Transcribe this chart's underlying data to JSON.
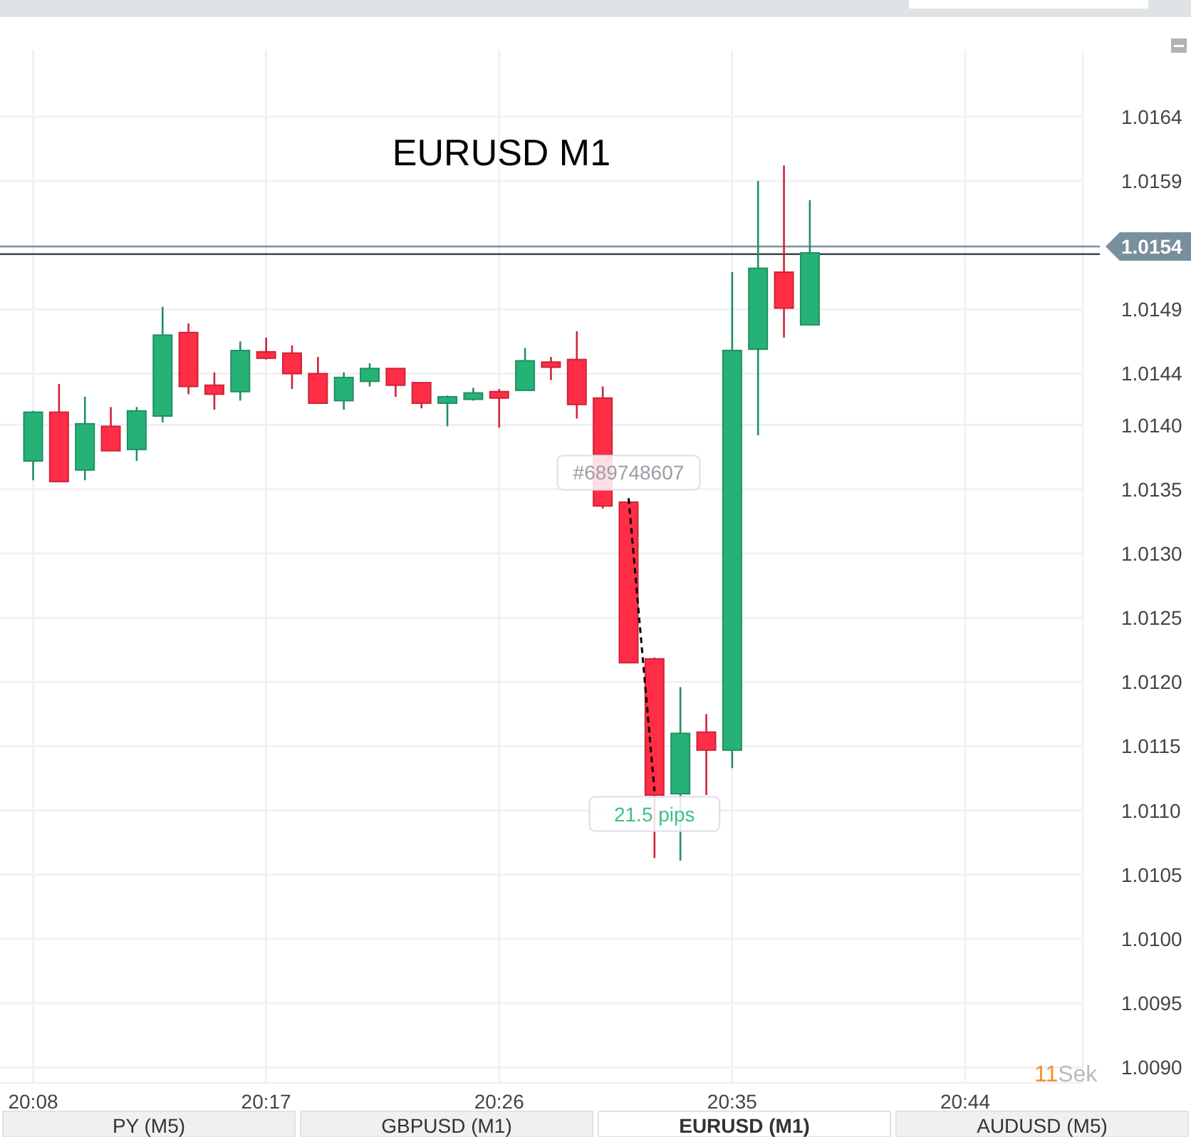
{
  "chart_data": {
    "type": "candlestick",
    "title": "EURUSD M1",
    "x": [
      20.13333,
      20.15,
      20.16667,
      20.18333,
      20.2,
      20.21667,
      20.23333,
      20.25,
      20.26667,
      20.28333,
      20.3,
      20.31667,
      20.33333,
      20.35,
      20.36667,
      20.38333,
      20.4,
      20.41667,
      20.43333,
      20.45,
      20.46667,
      20.48333,
      20.5,
      20.51667,
      20.53333,
      20.55,
      20.56667,
      20.58333,
      20.6,
      20.61667,
      20.63333
    ],
    "ohlc": [
      [
        1.01372,
        1.01411,
        1.01357,
        1.0141
      ],
      [
        1.0141,
        1.01432,
        1.01356,
        1.01356
      ],
      [
        1.01365,
        1.01422,
        1.01357,
        1.01401
      ],
      [
        1.01399,
        1.01414,
        1.0138,
        1.0138
      ],
      [
        1.01381,
        1.01414,
        1.01372,
        1.01411
      ],
      [
        1.01407,
        1.01492,
        1.01402,
        1.0147
      ],
      [
        1.01472,
        1.01479,
        1.01424,
        1.0143
      ],
      [
        1.01431,
        1.01441,
        1.01412,
        1.01424
      ],
      [
        1.01426,
        1.01465,
        1.01419,
        1.01458
      ],
      [
        1.01457,
        1.01468,
        1.01451,
        1.01452
      ],
      [
        1.01456,
        1.01462,
        1.01428,
        1.0144
      ],
      [
        1.0144,
        1.01453,
        1.01417,
        1.01417
      ],
      [
        1.01419,
        1.01441,
        1.01412,
        1.01437
      ],
      [
        1.01434,
        1.01448,
        1.0143,
        1.01444
      ],
      [
        1.01444,
        1.01444,
        1.01422,
        1.01431
      ],
      [
        1.01433,
        1.01433,
        1.01413,
        1.01417
      ],
      [
        1.01417,
        1.01423,
        1.01399,
        1.01422
      ],
      [
        1.0142,
        1.01429,
        1.01419,
        1.01425
      ],
      [
        1.01426,
        1.01428,
        1.01398,
        1.01421
      ],
      [
        1.01427,
        1.0146,
        1.01427,
        1.0145
      ],
      [
        1.01449,
        1.01453,
        1.01435,
        1.01445
      ],
      [
        1.01451,
        1.01473,
        1.01405,
        1.01416
      ],
      [
        1.01421,
        1.0143,
        1.01335,
        1.01337
      ],
      [
        1.0134,
        1.0134,
        1.01215,
        1.01215
      ],
      [
        1.01218,
        1.01219,
        1.01063,
        1.01112
      ],
      [
        1.01113,
        1.01196,
        1.01061,
        1.0116
      ],
      [
        1.01161,
        1.01175,
        1.01112,
        1.01147
      ],
      [
        1.01147,
        1.01519,
        1.01133,
        1.01458
      ],
      [
        1.01459,
        1.0159,
        1.01392,
        1.01522
      ],
      [
        1.01519,
        1.01602,
        1.01468,
        1.01491
      ],
      [
        1.01478,
        1.01575,
        1.01478,
        1.01534
      ]
    ],
    "colors": [
      "#26b276",
      "#ff2d46",
      "#26b276",
      "#ff2d46",
      "#26b276",
      "#26b276",
      "#ff2d46",
      "#ff2d46",
      "#26b276",
      "#ff2d46",
      "#ff2d46",
      "#ff2d46",
      "#26b276",
      "#26b276",
      "#ff2d46",
      "#ff2d46",
      "#26b276",
      "#26b276",
      "#ff2d46",
      "#26b276",
      "#ff2d46",
      "#ff2d46",
      "#ff2d46",
      "#ff2d46",
      "#ff2d46",
      "#26b276",
      "#ff2d46",
      "#26b276",
      "#26b276",
      "#ff2d46",
      "#26b276"
    ],
    "xlim": [
      20.112,
      20.809
    ],
    "xticks": [
      {
        "value": 20.13333,
        "label": "20:08"
      },
      {
        "value": 20.28333,
        "label": "20:17"
      },
      {
        "value": 20.43333,
        "label": "20:26"
      },
      {
        "value": 20.58333,
        "label": "20:35"
      },
      {
        "value": 20.73333,
        "label": "20:44"
      }
    ],
    "ylim": [
      1.00888,
      1.01692
    ],
    "yticks": [
      1.0164,
      1.0159,
      1.0149,
      1.0144,
      {
        "value": 1.014,
        "label": "1.0140"
      },
      1.0135,
      {
        "value": 1.013,
        "label": "1.0130"
      },
      1.0125,
      {
        "value": 1.012,
        "label": "1.0120"
      },
      1.0115,
      {
        "value": 1.011,
        "label": "1.0110"
      },
      1.0105,
      {
        "value": 1.01,
        "label": "1.0100"
      },
      1.0095,
      {
        "value": 1.009,
        "label": "1.0090"
      }
    ],
    "grid": true,
    "ref_lines": [
      {
        "axis": "y",
        "value": 1.01539,
        "label": "1.0154",
        "color": "#78909c"
      },
      {
        "axis": "y",
        "value": 1.01533,
        "color": "#37474f"
      }
    ],
    "annotations": [
      {
        "text": "#689748607",
        "x": 20.51667,
        "y": 1.01343
      },
      {
        "text": "21.5 pips",
        "x": 20.53333,
        "y": 1.01115
      },
      "11Sek",
      "PY (M5)",
      "GBPUSD (M1)",
      "EURUSD (M1)",
      "AUDUSD (M5)"
    ]
  }
}
